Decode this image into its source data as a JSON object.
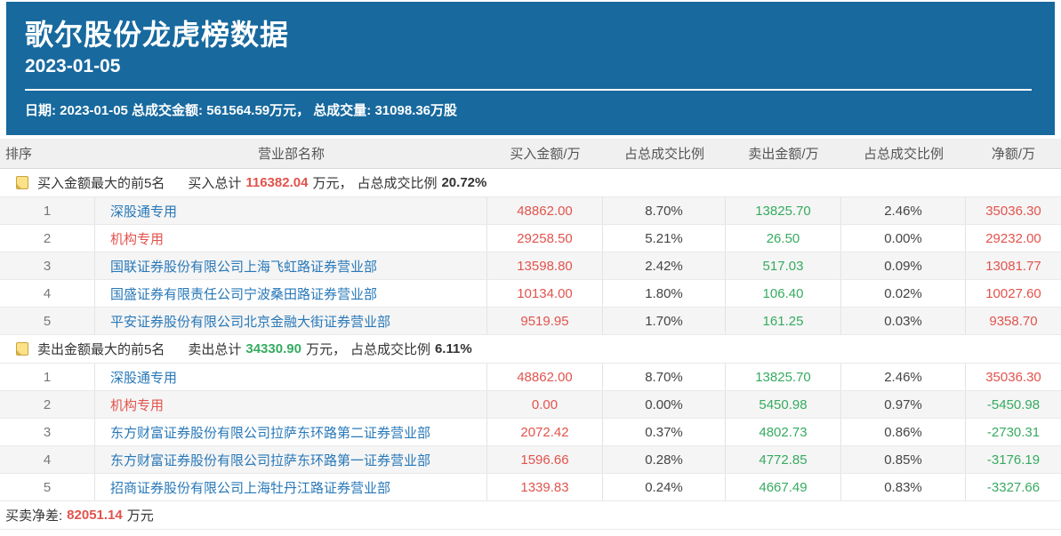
{
  "colors": {
    "header_blue": "#17699E",
    "up_red": "#E2534D",
    "down_green": "#36AB60",
    "link_blue": "#2878B8"
  },
  "header": {
    "title": "歌尔股份龙虎榜数据",
    "date": "2023-01-05",
    "summary": "日期: 2023-01-05 总成交金额: 561564.59万元， 总成交量: 31098.36万股"
  },
  "table": {
    "columns": [
      "排序",
      "营业部名称",
      "买入金额/万",
      "占总成交比例",
      "卖出金额/万",
      "占总成交比例",
      "净额/万"
    ],
    "sections": [
      {
        "title": "买入金额最大的前5名",
        "total_label": "买入总计",
        "total_value": "116382.04",
        "total_unit": "万元，",
        "ratio_label": "占总成交比例",
        "ratio_value": "20.72%",
        "total_color": "red",
        "rows": [
          {
            "rank": "1",
            "name": "深股通专用",
            "name_color": "blue",
            "buy": "48862.00",
            "buy_pct": "8.70%",
            "sell": "13825.70",
            "sell_pct": "2.46%",
            "net": "35036.30",
            "net_color": "red"
          },
          {
            "rank": "2",
            "name": "机构专用",
            "name_color": "red",
            "buy": "29258.50",
            "buy_pct": "5.21%",
            "sell": "26.50",
            "sell_pct": "0.00%",
            "net": "29232.00",
            "net_color": "red"
          },
          {
            "rank": "3",
            "name": "国联证券股份有限公司上海飞虹路证券营业部",
            "name_color": "blue",
            "buy": "13598.80",
            "buy_pct": "2.42%",
            "sell": "517.03",
            "sell_pct": "0.09%",
            "net": "13081.77",
            "net_color": "red"
          },
          {
            "rank": "4",
            "name": "国盛证券有限责任公司宁波桑田路证券营业部",
            "name_color": "blue",
            "buy": "10134.00",
            "buy_pct": "1.80%",
            "sell": "106.40",
            "sell_pct": "0.02%",
            "net": "10027.60",
            "net_color": "red"
          },
          {
            "rank": "5",
            "name": "平安证券股份有限公司北京金融大街证券营业部",
            "name_color": "blue",
            "buy": "9519.95",
            "buy_pct": "1.70%",
            "sell": "161.25",
            "sell_pct": "0.03%",
            "net": "9358.70",
            "net_color": "red"
          }
        ]
      },
      {
        "title": "卖出金额最大的前5名",
        "total_label": "卖出总计",
        "total_value": "34330.90",
        "total_unit": "万元，",
        "ratio_label": "占总成交比例",
        "ratio_value": "6.11%",
        "total_color": "green",
        "rows": [
          {
            "rank": "1",
            "name": "深股通专用",
            "name_color": "blue",
            "buy": "48862.00",
            "buy_pct": "8.70%",
            "sell": "13825.70",
            "sell_pct": "2.46%",
            "net": "35036.30",
            "net_color": "red"
          },
          {
            "rank": "2",
            "name": "机构专用",
            "name_color": "red",
            "buy": "0.00",
            "buy_pct": "0.00%",
            "sell": "5450.98",
            "sell_pct": "0.97%",
            "net": "-5450.98",
            "net_color": "green"
          },
          {
            "rank": "3",
            "name": "东方财富证券股份有限公司拉萨东环路第二证券营业部",
            "name_color": "blue",
            "buy": "2072.42",
            "buy_pct": "0.37%",
            "sell": "4802.73",
            "sell_pct": "0.86%",
            "net": "-2730.31",
            "net_color": "green"
          },
          {
            "rank": "4",
            "name": "东方财富证券股份有限公司拉萨东环路第一证券营业部",
            "name_color": "blue",
            "buy": "1596.66",
            "buy_pct": "0.28%",
            "sell": "4772.85",
            "sell_pct": "0.85%",
            "net": "-3176.19",
            "net_color": "green"
          },
          {
            "rank": "5",
            "name": "招商证券股份有限公司上海牡丹江路证券营业部",
            "name_color": "blue",
            "buy": "1339.83",
            "buy_pct": "0.24%",
            "sell": "4667.49",
            "sell_pct": "0.83%",
            "net": "-3327.66",
            "net_color": "green"
          }
        ]
      }
    ]
  },
  "footer": {
    "label": "买卖净差:",
    "value": "82051.14",
    "unit": "万元"
  }
}
